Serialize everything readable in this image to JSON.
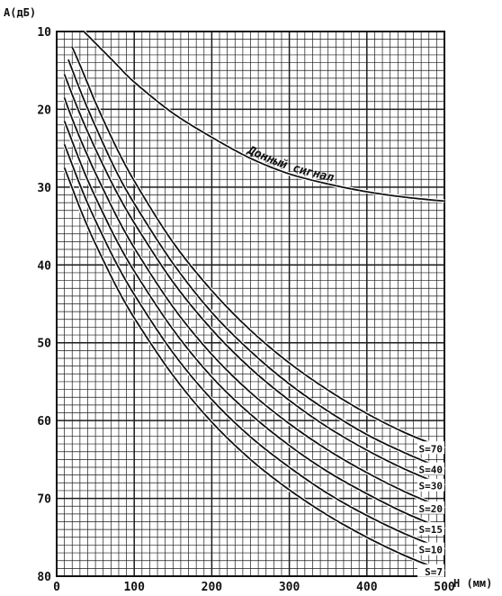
{
  "chart_data": {
    "type": "line",
    "ylabel": "A(дБ)",
    "xlabel": "H (мм)",
    "xlim": [
      0,
      500
    ],
    "ylim": [
      10,
      80
    ],
    "y_inverted": true,
    "grid": true,
    "x_ticks": [
      "0",
      "100",
      "200",
      "300",
      "400",
      "500"
    ],
    "y_ticks": [
      "10",
      "20",
      "30",
      "40",
      "50",
      "60",
      "70",
      "80"
    ],
    "bottom_label": {
      "text": "Донный сигнал",
      "x": [
        35,
        50,
        75,
        100,
        150,
        200,
        250,
        300,
        350,
        400,
        450,
        500
      ],
      "y": [
        10,
        11.5,
        14,
        16.5,
        20.5,
        23.6,
        26.3,
        28.3,
        29.6,
        30.6,
        31.3,
        31.8
      ]
    },
    "series": [
      {
        "name": "S=70",
        "x": [
          20,
          30,
          40,
          50,
          75,
          100,
          150,
          200,
          250,
          300,
          350,
          400,
          450,
          500
        ],
        "y": [
          12,
          14.3,
          16.7,
          19.1,
          24.5,
          29.2,
          37.1,
          43.3,
          48.4,
          52.6,
          56.1,
          59.1,
          61.6,
          63.6
        ]
      },
      {
        "name": "S=40",
        "x": [
          15,
          20,
          30,
          40,
          50,
          75,
          100,
          150,
          200,
          250,
          300,
          350,
          400,
          450,
          500
        ],
        "y": [
          13.6,
          14.9,
          17.5,
          19.9,
          22.2,
          27.6,
          32.1,
          39.8,
          46.1,
          51.1,
          55.3,
          58.8,
          61.8,
          64.2,
          66.3
        ]
      },
      {
        "name": "S=30",
        "x": [
          10,
          15,
          20,
          30,
          40,
          50,
          75,
          100,
          150,
          200,
          250,
          300,
          350,
          400,
          450,
          500
        ],
        "y": [
          15.5,
          16.8,
          18.1,
          20.6,
          22.9,
          25.1,
          30.2,
          34.6,
          42.2,
          48.3,
          53.3,
          57.4,
          60.9,
          63.8,
          66.3,
          68.4
        ]
      },
      {
        "name": "S=20",
        "x": [
          10,
          15,
          20,
          30,
          40,
          50,
          75,
          100,
          150,
          200,
          250,
          300,
          350,
          400,
          450,
          500
        ],
        "y": [
          18.5,
          19.9,
          21.2,
          23.7,
          26,
          28.2,
          33.3,
          37.8,
          45.4,
          51.5,
          56.4,
          60.4,
          63.8,
          66.7,
          69.2,
          71.3
        ]
      },
      {
        "name": "S=15",
        "x": [
          10,
          15,
          20,
          30,
          40,
          50,
          75,
          100,
          150,
          200,
          250,
          300,
          350,
          400,
          450,
          500
        ],
        "y": [
          21.5,
          22.8,
          24.1,
          26.7,
          29.1,
          31.3,
          36.4,
          40.8,
          48.3,
          54.4,
          59.2,
          63.2,
          66.6,
          69.4,
          71.9,
          74
        ]
      },
      {
        "name": "S=10",
        "x": [
          10,
          15,
          20,
          30,
          40,
          50,
          75,
          100,
          150,
          200,
          250,
          300,
          350,
          400,
          450,
          500
        ],
        "y": [
          24.5,
          25.8,
          27.1,
          29.7,
          32.1,
          34.3,
          39.4,
          43.8,
          51.3,
          57.3,
          62.1,
          66,
          69.4,
          72.2,
          74.6,
          76.6
        ]
      },
      {
        "name": "S=7",
        "x": [
          10,
          15,
          20,
          30,
          40,
          50,
          75,
          100,
          150,
          200,
          250,
          300,
          350,
          400,
          450,
          500
        ],
        "y": [
          27.5,
          28.8,
          30.1,
          32.7,
          35.1,
          37.3,
          42.4,
          46.8,
          54.2,
          60.2,
          65,
          68.9,
          72.2,
          75,
          77.4,
          79.4
        ]
      }
    ]
  }
}
